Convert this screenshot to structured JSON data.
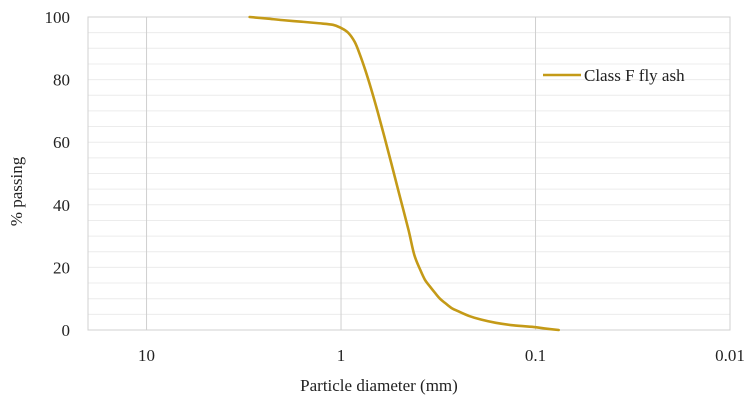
{
  "chart_data": {
    "type": "line",
    "xlabel": "Particle diameter (mm)",
    "ylabel": "% passing",
    "x_scale": "log",
    "x_reversed": true,
    "xlim": [
      20,
      0.01
    ],
    "ylim": [
      0,
      100
    ],
    "x_ticks": [
      10,
      1,
      0.1,
      0.01
    ],
    "x_tick_labels": [
      "10",
      "1",
      "0.1",
      "0.01"
    ],
    "y_ticks": [
      0,
      20,
      40,
      60,
      80,
      100
    ],
    "y_tick_labels": [
      "0",
      "20",
      "40",
      "60",
      "80",
      "100"
    ],
    "grid": {
      "major_vertical": true,
      "minor_horizontal": true
    },
    "legend_position": "top-right",
    "colors": {
      "series": "#C49A17",
      "grid_major": "#cfcfcf",
      "grid_minor": "#ececec",
      "frame": "#d0d0d0"
    },
    "series": [
      {
        "name": "Class F fly ash",
        "x": [
          2.95,
          2.4,
          2.0,
          1.6,
          1.3,
          1.1,
          1.0,
          0.92,
          0.85,
          0.8,
          0.75,
          0.7,
          0.65,
          0.6,
          0.55,
          0.5,
          0.45,
          0.42,
          0.39,
          0.37,
          0.35,
          0.33,
          0.31,
          0.29,
          0.27,
          0.25,
          0.22,
          0.19,
          0.16,
          0.13,
          0.1,
          0.09,
          0.076
        ],
        "y": [
          100,
          99.5,
          99,
          98.5,
          98,
          97.5,
          96.5,
          95,
          92,
          88,
          83,
          77,
          70,
          62,
          53,
          43,
          32,
          24,
          19,
          16,
          14,
          12,
          10,
          8.5,
          7,
          6,
          4.5,
          3.3,
          2.3,
          1.5,
          0.9,
          0.5,
          0
        ]
      }
    ]
  }
}
